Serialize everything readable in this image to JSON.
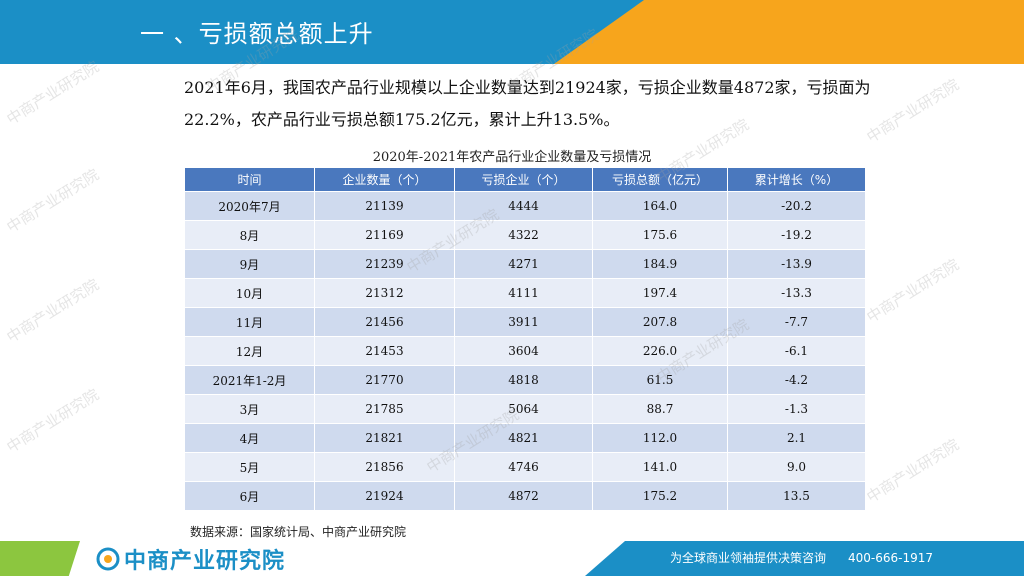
{
  "header": {
    "title": "一 、亏损额总额上升"
  },
  "paragraph": "2021年6月，我国农产品行业规模以上企业数量达到21924家，亏损企业数量4872家，亏损面为22.2%，农产品行业亏损总额175.2亿元，累计上升13.5%。",
  "table": {
    "title": "2020年-2021年农产品行业企业数量及亏损情况",
    "headers": [
      "时间",
      "企业数量（个）",
      "亏损企业（个）",
      "亏损总额（亿元）",
      "累计增长（%）"
    ],
    "rows": [
      [
        "2020年7月",
        "21139",
        "4444",
        "164.0",
        "-20.2"
      ],
      [
        "8月",
        "21169",
        "4322",
        "175.6",
        "-19.2"
      ],
      [
        "9月",
        "21239",
        "4271",
        "184.9",
        "-13.9"
      ],
      [
        "10月",
        "21312",
        "4111",
        "197.4",
        "-13.3"
      ],
      [
        "11月",
        "21456",
        "3911",
        "207.8",
        "-7.7"
      ],
      [
        "12月",
        "21453",
        "3604",
        "226.0",
        "-6.1"
      ],
      [
        "2021年1-2月",
        "21770",
        "4818",
        "61.5",
        "-4.2"
      ],
      [
        "3月",
        "21785",
        "5064",
        "88.7",
        "-1.3"
      ],
      [
        "4月",
        "21821",
        "4821",
        "112.0",
        "2.1"
      ],
      [
        "5月",
        "21856",
        "4746",
        "141.0",
        "9.0"
      ],
      [
        "6月",
        "21924",
        "4872",
        "175.2",
        "13.5"
      ]
    ]
  },
  "source": "数据来源：国家统计局、中商产业研究院",
  "footer": {
    "logo_text": "中商产业研究院",
    "slogan": "为全球商业领袖提供决策咨询",
    "phone": "400-666-1917"
  },
  "watermark": "中商产业研究院",
  "colors": {
    "header_blue": "#1b8fc6",
    "header_orange": "#f7a51c",
    "table_header": "#4a78be",
    "footer_green": "#8cc63f"
  }
}
